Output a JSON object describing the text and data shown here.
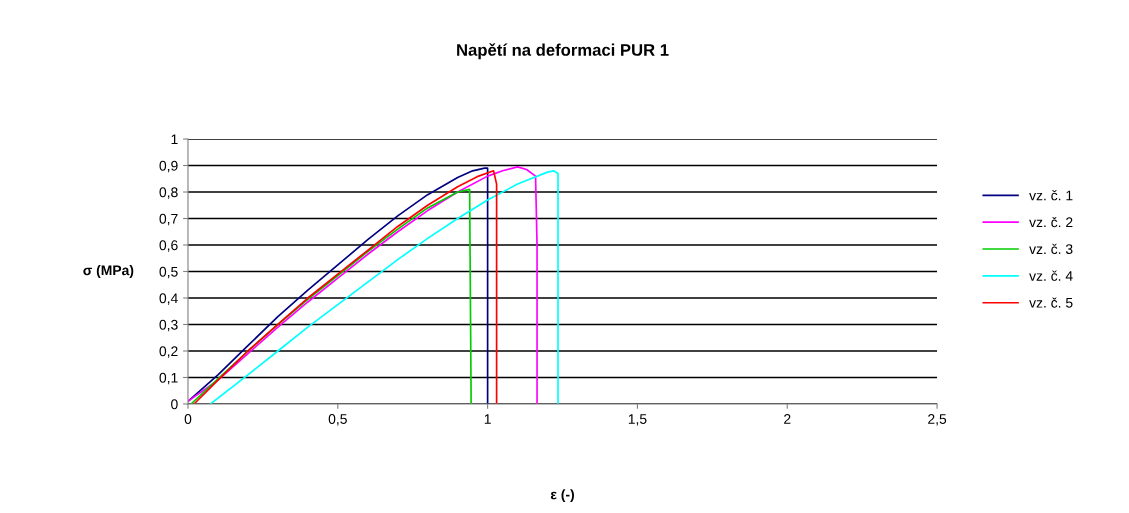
{
  "chart_data": {
    "type": "line",
    "title": "Napětí na deformaci PUR 1",
    "xlabel": "ε (-)",
    "ylabel": "σ (MPa)",
    "xlim": [
      0,
      2.5
    ],
    "xticks": [
      0,
      {
        "value": 0.5,
        "label": "0,5"
      },
      1,
      {
        "value": 1.5,
        "label": "1,5"
      },
      2,
      {
        "value": 2.5,
        "label": "2,5"
      }
    ],
    "ylim": [
      0,
      1
    ],
    "yticks": [
      0,
      {
        "value": 0.1,
        "label": "0,1"
      },
      {
        "value": 0.2,
        "label": "0,2"
      },
      {
        "value": 0.3,
        "label": "0,3"
      },
      {
        "value": 0.4,
        "label": "0,4"
      },
      {
        "value": 0.5,
        "label": "0,5"
      },
      {
        "value": 0.6,
        "label": "0,6"
      },
      {
        "value": 0.7,
        "label": "0,7"
      },
      {
        "value": 0.8,
        "label": "0,8"
      },
      {
        "value": 0.9,
        "label": "0,9"
      },
      1
    ],
    "grid": "y",
    "legend": "right",
    "marker": "none",
    "line_style": "solid",
    "series": [
      {
        "name": "vz. č. 1",
        "color": "#000080",
        "x": [
          0,
          0.1,
          0.2,
          0.3,
          0.4,
          0.5,
          0.6,
          0.7,
          0.8,
          0.9,
          0.95,
          0.99,
          1.0,
          1.0
        ],
        "values": [
          0.01,
          0.11,
          0.22,
          0.33,
          0.43,
          0.525,
          0.62,
          0.71,
          0.79,
          0.855,
          0.88,
          0.89,
          0.89,
          0
        ]
      },
      {
        "name": "vz. č. 2",
        "color": "#ff00ff",
        "x": [
          0,
          0.1,
          0.2,
          0.3,
          0.4,
          0.5,
          0.6,
          0.7,
          0.8,
          0.9,
          1.0,
          1.05,
          1.1,
          1.13,
          1.16,
          1.165,
          1.165
        ],
        "values": [
          0.01,
          0.09,
          0.19,
          0.29,
          0.385,
          0.475,
          0.565,
          0.65,
          0.73,
          0.8,
          0.86,
          0.88,
          0.895,
          0.885,
          0.86,
          0.6,
          0
        ]
      },
      {
        "name": "vz. č. 3",
        "color": "#00cc00",
        "x": [
          0.01,
          0.1,
          0.2,
          0.3,
          0.4,
          0.5,
          0.6,
          0.7,
          0.8,
          0.9,
          0.94,
          0.945
        ],
        "values": [
          0,
          0.095,
          0.2,
          0.3,
          0.395,
          0.485,
          0.575,
          0.66,
          0.74,
          0.8,
          0.81,
          0
        ]
      },
      {
        "name": "vz. č. 4",
        "color": "#00ffff",
        "x": [
          0.075,
          0.2,
          0.3,
          0.4,
          0.5,
          0.6,
          0.7,
          0.8,
          0.9,
          1.0,
          1.1,
          1.2,
          1.22,
          1.235,
          1.235
        ],
        "values": [
          0,
          0.11,
          0.2,
          0.29,
          0.375,
          0.46,
          0.545,
          0.625,
          0.7,
          0.77,
          0.83,
          0.875,
          0.88,
          0.87,
          0
        ]
      },
      {
        "name": "vz. č. 5",
        "color": "#ff0000",
        "x": [
          0.02,
          0.1,
          0.2,
          0.3,
          0.4,
          0.5,
          0.6,
          0.7,
          0.8,
          0.9,
          0.97,
          1.02,
          1.03,
          1.03
        ],
        "values": [
          0,
          0.09,
          0.2,
          0.3,
          0.4,
          0.49,
          0.58,
          0.67,
          0.75,
          0.82,
          0.86,
          0.88,
          0.83,
          0
        ]
      }
    ]
  }
}
